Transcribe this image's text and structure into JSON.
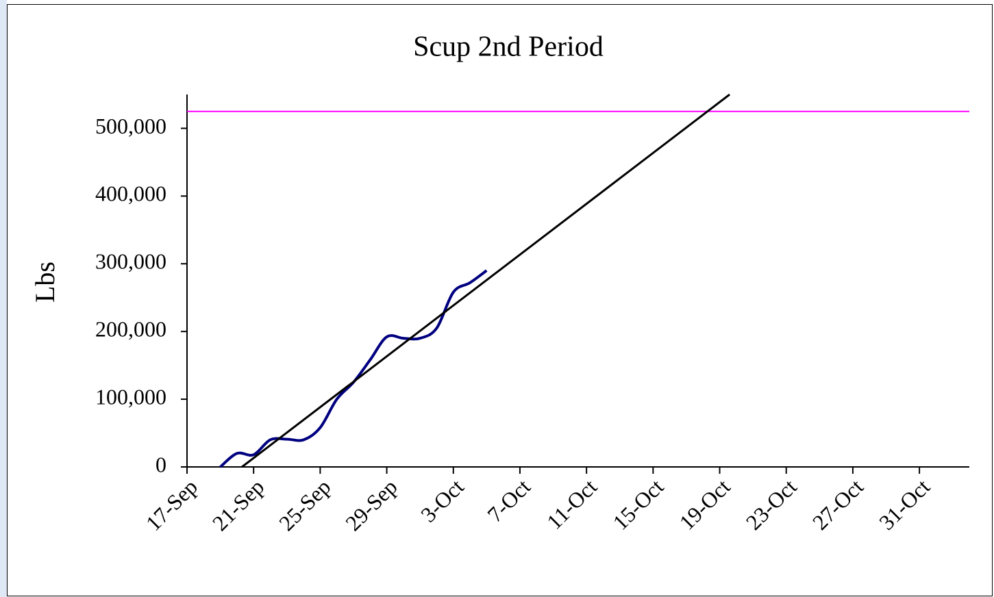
{
  "chart_data": {
    "type": "line",
    "title": "Scup 2nd Period",
    "y_label": "Lbs",
    "xlim": [
      260,
      307
    ],
    "xticks": [
      {
        "value": 260,
        "label": "17-Sep"
      },
      {
        "value": 264,
        "label": "21-Sep"
      },
      {
        "value": 268,
        "label": "25-Sep"
      },
      {
        "value": 272,
        "label": "29-Sep"
      },
      {
        "value": 276,
        "label": "3-Oct"
      },
      {
        "value": 280,
        "label": "7-Oct"
      },
      {
        "value": 284,
        "label": "11-Oct"
      },
      {
        "value": 288,
        "label": "15-Oct"
      },
      {
        "value": 292,
        "label": "19-Oct"
      },
      {
        "value": 296,
        "label": "23-Oct"
      },
      {
        "value": 300,
        "label": "27-Oct"
      },
      {
        "value": 304,
        "label": "31-Oct"
      }
    ],
    "ylim": [
      0,
      550000
    ],
    "yticks": [
      0,
      {
        "value": 100000,
        "label": "100,000"
      },
      {
        "value": 200000,
        "label": "200,000"
      },
      {
        "value": 300000,
        "label": "300,000"
      },
      {
        "value": 400000,
        "label": "400,000"
      },
      {
        "value": 500000,
        "label": "500,000"
      }
    ],
    "series": [
      {
        "color": "#000080",
        "smooth": true,
        "x": [
          262,
          263,
          264,
          265,
          266,
          267,
          268,
          269,
          270,
          271,
          272,
          273,
          274,
          275,
          276,
          277,
          278
        ],
        "values": [
          0,
          20000,
          18000,
          40000,
          41000,
          40000,
          58000,
          100000,
          125000,
          158000,
          192000,
          190000,
          190000,
          205000,
          258000,
          272000,
          290000
        ]
      },
      {
        "color": "#000000",
        "smooth": false,
        "x": [
          263.3,
          292.6
        ],
        "values": [
          0,
          550000
        ]
      }
    ],
    "hline": {
      "value": 525000,
      "color": "#ff00ff"
    }
  }
}
